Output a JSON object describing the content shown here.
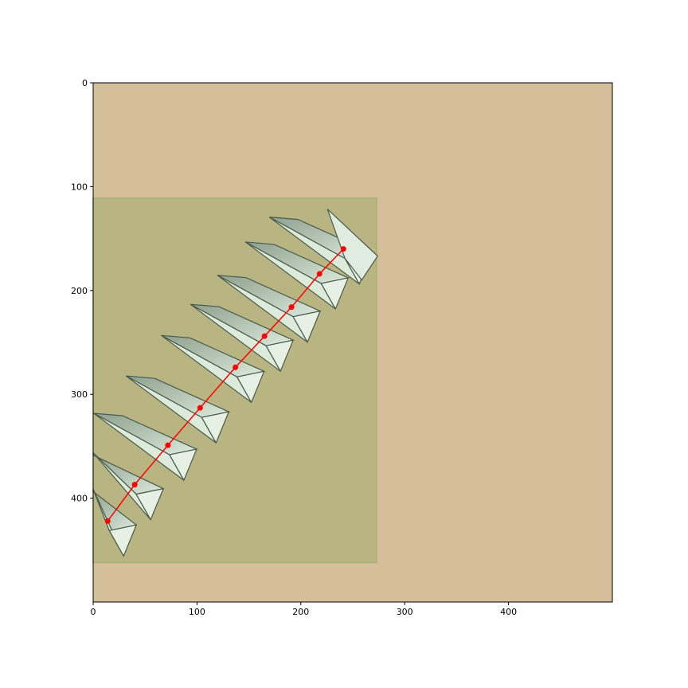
{
  "chart_data": {
    "type": "scatter",
    "title": "",
    "xlabel": "",
    "ylabel": "",
    "xlim": [
      0,
      500
    ],
    "ylim": [
      500,
      0
    ],
    "y_inverted": true,
    "grid": false,
    "x_ticks": [
      {
        "value": 0,
        "label": "0"
      },
      {
        "value": 100,
        "label": "100"
      },
      {
        "value": 200,
        "label": "200"
      },
      {
        "value": 300,
        "label": "300"
      },
      {
        "value": 400,
        "label": "400"
      }
    ],
    "y_ticks": [
      {
        "value": 0,
        "label": "0"
      },
      {
        "value": 100,
        "label": "100"
      },
      {
        "value": 200,
        "label": "200"
      },
      {
        "value": 300,
        "label": "300"
      },
      {
        "value": 400,
        "label": "400"
      }
    ],
    "background_image": {
      "description_color": "#d4bf9a",
      "highlight_box": {
        "x0": 0,
        "y0": 111,
        "x1": 273,
        "y1": 462,
        "color": "#b8b582"
      },
      "folded_surface_color": "#dcebdc",
      "folded_surface_edge_color": "#4a5a4a"
    },
    "series": [
      {
        "color": "#ff0000",
        "marker": "circle",
        "line": true,
        "x": [
          14,
          40,
          72,
          103,
          137,
          165,
          191,
          218,
          241
        ],
        "y": [
          422,
          387,
          349,
          313,
          274,
          244,
          216,
          184,
          160
        ]
      }
    ]
  }
}
